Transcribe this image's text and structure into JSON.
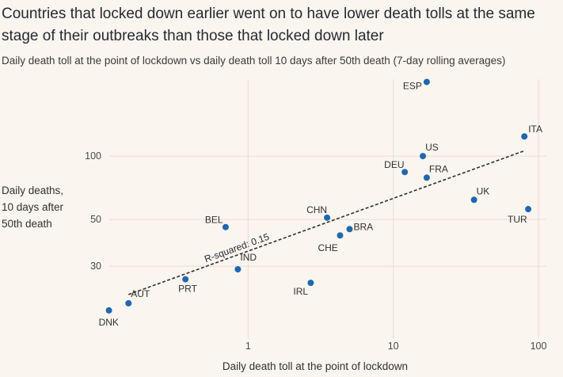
{
  "chart_data": {
    "type": "scatter",
    "title": "Countries that locked down earlier went on to have lower death tolls at the same stage of their outbreaks than those that locked down later",
    "subtitle": "Daily death toll at the point of lockdown vs daily death toll 10 days after 50th death (7-day rolling averages)",
    "xlabel": "Daily death toll at the point of lockdown",
    "ylabel": [
      "Daily deaths,",
      "10 days after",
      "50th death"
    ],
    "x_scale": "log",
    "y_scale": "log",
    "xlim": [
      0.1,
      100
    ],
    "ylim": [
      13.3,
      240
    ],
    "x_ticks": [
      1,
      10,
      100
    ],
    "y_ticks": [
      30,
      50,
      100
    ],
    "gridlines": "vertical at x ticks, horizontal at y ticks",
    "point_color": "#1f68b0",
    "points": [
      {
        "label": "ESP",
        "x": 17,
        "y": 225
      },
      {
        "label": "ITA",
        "x": 80,
        "y": 124
      },
      {
        "label": "US",
        "x": 16,
        "y": 100
      },
      {
        "label": "DEU",
        "x": 12,
        "y": 84
      },
      {
        "label": "FRA",
        "x": 17,
        "y": 79
      },
      {
        "label": "UK",
        "x": 36,
        "y": 62
      },
      {
        "label": "TUR",
        "x": 85,
        "y": 56
      },
      {
        "label": "CHN",
        "x": 3.5,
        "y": 51
      },
      {
        "label": "BRA",
        "x": 5,
        "y": 45
      },
      {
        "label": "CHE",
        "x": 4.3,
        "y": 42
      },
      {
        "label": "BEL",
        "x": 0.7,
        "y": 46
      },
      {
        "label": "IND",
        "x": 0.85,
        "y": 29
      },
      {
        "label": "IRL",
        "x": 2.7,
        "y": 25
      },
      {
        "label": "PRT",
        "x": 0.37,
        "y": 26
      },
      {
        "label": "AUT",
        "x": 0.15,
        "y": 20
      },
      {
        "label": "DNK",
        "x": 0.11,
        "y": 18.5
      }
    ],
    "trendline": {
      "style": "dashed",
      "from": {
        "x": 0.15,
        "y": 22
      },
      "to": {
        "x": 80,
        "y": 106
      },
      "label": "R-squared: 0.15"
    }
  }
}
